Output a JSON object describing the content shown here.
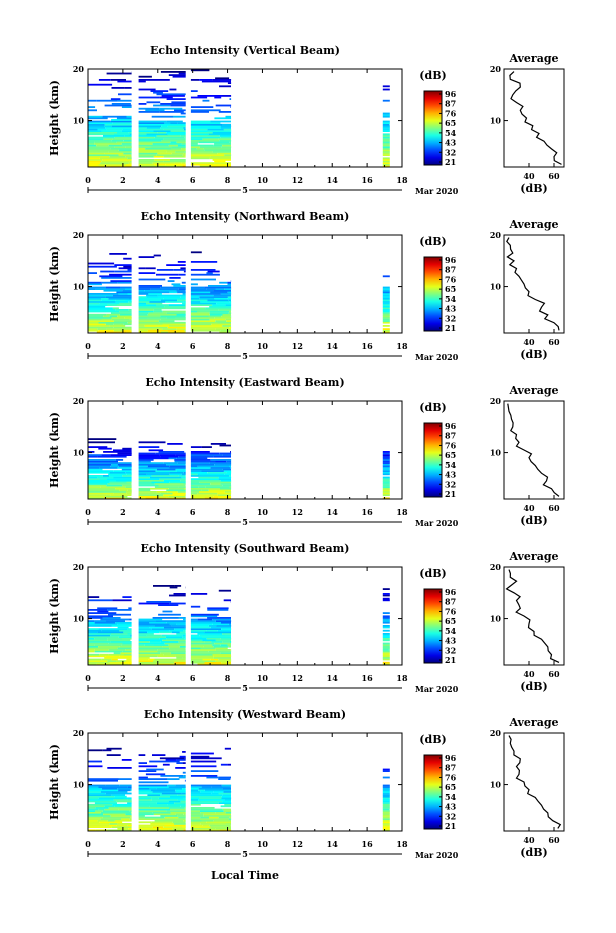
{
  "figure": {
    "xlabel": "Local Time",
    "date_label": "Mar 2020",
    "day_marker": "5",
    "cbar_unit": "(dB)",
    "avg_title": "Average",
    "avg_xlabel": "(dB)",
    "ylabel": "Height (km)"
  },
  "chart_data": [
    {
      "type": "heatmap",
      "title": "Echo Intensity (Vertical Beam)",
      "xlabel": "Local Time",
      "ylabel": "Height (km)",
      "x_ticks": [
        "0",
        "2",
        "4",
        "6",
        "8",
        "10",
        "12",
        "14",
        "16",
        "18"
      ],
      "xlim": [
        0,
        18
      ],
      "y_ticks": [
        "20",
        "10"
      ],
      "ylim": [
        1,
        20
      ],
      "colorbar": {
        "label": "(dB)",
        "ticks": [
          "96",
          "87",
          "76",
          "65",
          "54",
          "43",
          "32",
          "21"
        ],
        "range": [
          21,
          96
        ]
      },
      "data_segments": [
        [
          0,
          2.5
        ],
        [
          2.9,
          5.6
        ],
        [
          5.9,
          8.2
        ],
        [
          16.9,
          17.3
        ]
      ],
      "top_height_km": 20,
      "average_profile": {
        "title": "Average",
        "xlabel": "(dB)",
        "x_ticks": [
          "40",
          "60"
        ],
        "xlim": [
          20,
          68
        ],
        "y_ticks": [
          "20",
          "10"
        ],
        "heights_km": [
          1.5,
          3,
          4.5,
          6,
          7.5,
          9,
          10.5,
          12,
          13.5,
          15,
          16.5,
          18,
          19.5
        ],
        "values_db": [
          66,
          60,
          58,
          52,
          48,
          43,
          38,
          33,
          30,
          27,
          33,
          25,
          28
        ]
      }
    },
    {
      "type": "heatmap",
      "title": "Echo Intensity (Northward Beam)",
      "xlabel": "Local Time",
      "ylabel": "Height (km)",
      "x_ticks": [
        "0",
        "2",
        "4",
        "6",
        "8",
        "10",
        "12",
        "14",
        "16",
        "18"
      ],
      "xlim": [
        0,
        18
      ],
      "y_ticks": [
        "20",
        "10"
      ],
      "ylim": [
        1,
        20
      ],
      "colorbar": {
        "label": "(dB)",
        "ticks": [
          "96",
          "87",
          "76",
          "65",
          "54",
          "43",
          "32",
          "21"
        ],
        "range": [
          21,
          96
        ]
      },
      "data_segments": [
        [
          0,
          2.5
        ],
        [
          2.9,
          5.6
        ],
        [
          5.9,
          8.2
        ],
        [
          16.9,
          17.3
        ]
      ],
      "top_height_km": 17,
      "average_profile": {
        "title": "Average",
        "xlabel": "(dB)",
        "x_ticks": [
          "40",
          "60"
        ],
        "xlim": [
          20,
          68
        ],
        "y_ticks": [
          "20",
          "10"
        ],
        "heights_km": [
          1.5,
          3,
          4.5,
          6,
          7.5,
          9,
          10.5,
          12,
          13.5,
          15,
          16.5,
          18,
          19.5
        ],
        "values_db": [
          64,
          60,
          55,
          50,
          45,
          40,
          36,
          32,
          30,
          28,
          27,
          25,
          24
        ]
      }
    },
    {
      "type": "heatmap",
      "title": "Echo Intensity (Eastward Beam)",
      "xlabel": "Local Time",
      "ylabel": "Height (km)",
      "x_ticks": [
        "0",
        "2",
        "4",
        "6",
        "8",
        "10",
        "12",
        "14",
        "16",
        "18"
      ],
      "xlim": [
        0,
        18
      ],
      "y_ticks": [
        "20",
        "10"
      ],
      "ylim": [
        1,
        20
      ],
      "colorbar": {
        "label": "(dB)",
        "ticks": [
          "96",
          "87",
          "76",
          "65",
          "54",
          "43",
          "32",
          "21"
        ],
        "range": [
          21,
          96
        ]
      },
      "data_segments": [
        [
          0,
          2.5
        ],
        [
          2.9,
          5.6
        ],
        [
          5.9,
          8.2
        ],
        [
          16.9,
          17.3
        ]
      ],
      "top_height_km": 13,
      "average_profile": {
        "title": "Average",
        "xlabel": "(dB)",
        "x_ticks": [
          "40",
          "60"
        ],
        "xlim": [
          20,
          68
        ],
        "y_ticks": [
          "20",
          "10"
        ],
        "heights_km": [
          1.5,
          3,
          4.5,
          6,
          7.5,
          9,
          10.5,
          12,
          13.5,
          15,
          16.5,
          18,
          19.5
        ],
        "values_db": [
          64,
          58,
          54,
          50,
          45,
          40,
          36,
          32,
          30,
          27,
          26,
          24,
          23
        ]
      }
    },
    {
      "type": "heatmap",
      "title": "Echo Intensity (Southward Beam)",
      "xlabel": "Local Time",
      "ylabel": "Height (km)",
      "x_ticks": [
        "0",
        "2",
        "4",
        "6",
        "8",
        "10",
        "12",
        "14",
        "16",
        "18"
      ],
      "xlim": [
        0,
        18
      ],
      "y_ticks": [
        "20",
        "10"
      ],
      "ylim": [
        1,
        20
      ],
      "colorbar": {
        "label": "(dB)",
        "ticks": [
          "96",
          "87",
          "76",
          "65",
          "54",
          "43",
          "32",
          "21"
        ],
        "range": [
          21,
          96
        ]
      },
      "data_segments": [
        [
          0,
          2.5
        ],
        [
          2.9,
          5.6
        ],
        [
          5.9,
          8.2
        ],
        [
          16.9,
          17.3
        ]
      ],
      "top_height_km": 17,
      "average_profile": {
        "title": "Average",
        "xlabel": "(dB)",
        "x_ticks": [
          "40",
          "60"
        ],
        "xlim": [
          20,
          68
        ],
        "y_ticks": [
          "20",
          "10"
        ],
        "heights_km": [
          1.5,
          3,
          4.5,
          6,
          7.5,
          9,
          10.5,
          12,
          13.5,
          15,
          16.5,
          18,
          19.5
        ],
        "values_db": [
          64,
          58,
          55,
          50,
          44,
          40,
          36,
          33,
          30,
          28,
          26,
          25,
          24
        ]
      }
    },
    {
      "type": "heatmap",
      "title": "Echo Intensity (Westward Beam)",
      "xlabel": "Local Time",
      "ylabel": "Height (km)",
      "x_ticks": [
        "0",
        "2",
        "4",
        "6",
        "8",
        "10",
        "12",
        "14",
        "16",
        "18"
      ],
      "xlim": [
        0,
        18
      ],
      "y_ticks": [
        "20",
        "10"
      ],
      "ylim": [
        1,
        20
      ],
      "colorbar": {
        "label": "(dB)",
        "ticks": [
          "96",
          "87",
          "76",
          "65",
          "54",
          "43",
          "32",
          "21"
        ],
        "range": [
          21,
          96
        ]
      },
      "data_segments": [
        [
          0,
          2.5
        ],
        [
          2.9,
          5.6
        ],
        [
          5.9,
          8.2
        ],
        [
          16.9,
          17.3
        ]
      ],
      "top_height_km": 18,
      "average_profile": {
        "title": "Average",
        "xlabel": "(dB)",
        "x_ticks": [
          "40",
          "60"
        ],
        "xlim": [
          20,
          68
        ],
        "y_ticks": [
          "20",
          "10"
        ],
        "heights_km": [
          1.5,
          3,
          4.5,
          6,
          7.5,
          9,
          10.5,
          12,
          13.5,
          15,
          16.5,
          18,
          19.5
        ],
        "values_db": [
          63,
          59,
          55,
          50,
          45,
          40,
          36,
          32,
          30,
          33,
          28,
          25,
          24
        ]
      }
    }
  ]
}
